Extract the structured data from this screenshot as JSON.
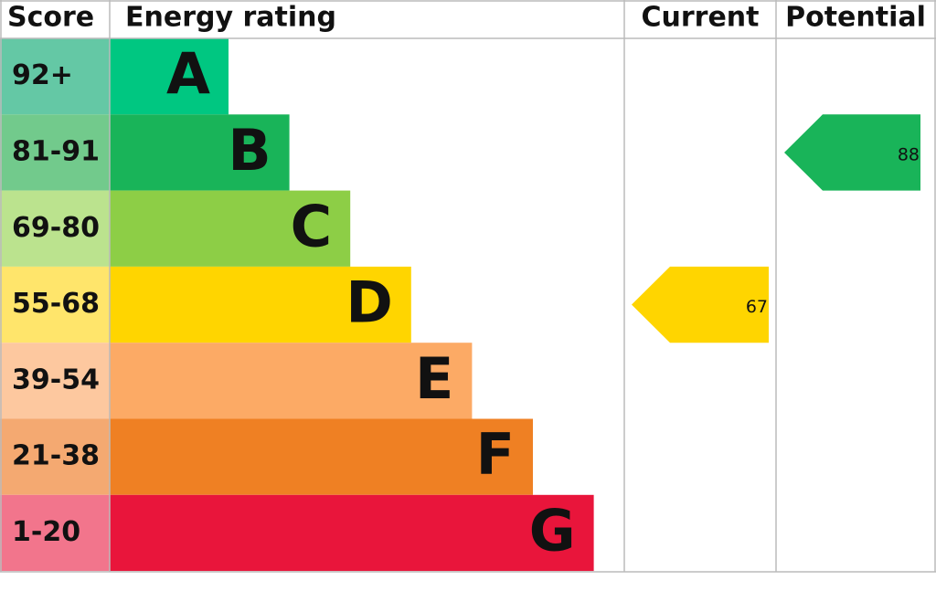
{
  "header": {
    "score": "Score",
    "rating": "Energy rating",
    "current": "Current",
    "potential": "Potential"
  },
  "bands": [
    {
      "score": "92+",
      "letter": "A",
      "color": "#00c781",
      "light": "#64c8a5"
    },
    {
      "score": "81-91",
      "letter": "B",
      "color": "#19b459",
      "light": "#72ca8c"
    },
    {
      "score": "69-80",
      "letter": "C",
      "color": "#8dce46",
      "light": "#bbe38e"
    },
    {
      "score": "55-68",
      "letter": "D",
      "color": "#ffd500",
      "light": "#ffe56b"
    },
    {
      "score": "39-54",
      "letter": "E",
      "color": "#fcaa65",
      "light": "#fdc89f"
    },
    {
      "score": "21-38",
      "letter": "F",
      "color": "#ef8023",
      "light": "#f4a971"
    },
    {
      "score": "1-20",
      "letter": "G",
      "color": "#e9153b",
      "light": "#f2758c"
    }
  ],
  "current": {
    "value": 67
  },
  "potential": {
    "value": 88
  }
}
